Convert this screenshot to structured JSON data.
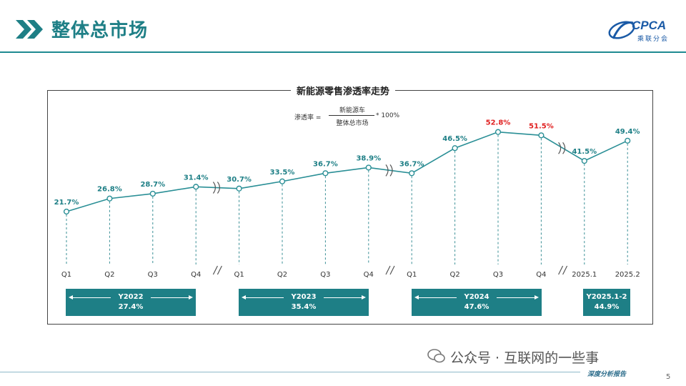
{
  "header": {
    "title": "整体总市场",
    "logo_text": "CPCA",
    "logo_sub": "乘联分会"
  },
  "formula": {
    "lhs": "渗透率 =",
    "numerator": "新能源车",
    "denominator": "整体总市场",
    "rhs": "* 100%"
  },
  "chart_data": {
    "type": "line",
    "title": "新能源零售渗透率走势",
    "categories": [
      "Q1",
      "Q2",
      "Q3",
      "Q4",
      "Q1",
      "Q2",
      "Q3",
      "Q4",
      "Q1",
      "Q2",
      "Q3",
      "Q4",
      "2025.1",
      "2025.2"
    ],
    "series": [
      {
        "values": [
          21.7,
          26.8,
          28.7,
          31.4,
          30.7,
          33.5,
          36.7,
          38.9,
          36.7,
          46.5,
          52.8,
          51.5,
          41.5,
          49.4
        ],
        "labels": [
          "21.7%",
          "26.8%",
          "28.7%",
          "31.4%",
          "30.7%",
          "33.5%",
          "36.7%",
          "38.9%",
          "36.7%",
          "46.5%",
          "52.8%",
          "51.5%",
          "41.5%",
          "49.4%"
        ],
        "highlighted": [
          10,
          11
        ]
      }
    ],
    "axis_breaks_after": [
      3,
      7,
      11
    ],
    "grid": false,
    "legend": "none",
    "colors": {
      "line": "#2a8f96",
      "label": "#1e7f86",
      "highlight": "#e02020"
    }
  },
  "year_boxes": [
    {
      "label": "Y2022",
      "value": "27.4%",
      "arrows": true
    },
    {
      "label": "Y2023",
      "value": "35.4%",
      "arrows": true
    },
    {
      "label": "Y2024",
      "value": "47.6%",
      "arrows": true
    },
    {
      "label": "Y2025.1-2",
      "value": "44.9%",
      "arrows": false
    }
  ],
  "footer": {
    "watermark": "公众号 · 互联网的一些事",
    "report_label": "深度分析报告",
    "page_number": "5"
  },
  "colors": {
    "brand": "#1e7f86",
    "logo": "#1a5aa6"
  }
}
